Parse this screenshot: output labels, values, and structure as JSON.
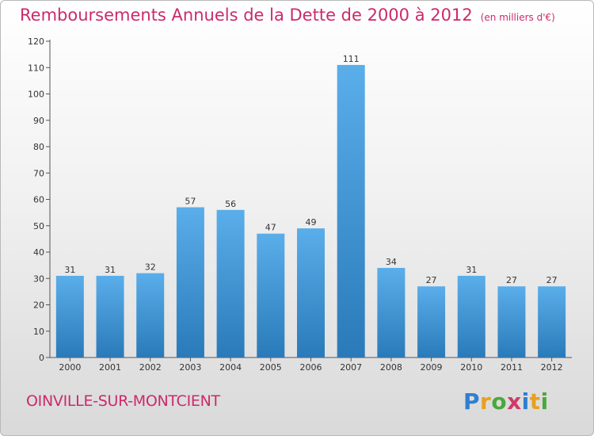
{
  "title": "Remboursements Annuels de la Dette de 2000 à 2012",
  "unit": "(en milliers d'€)",
  "commune": "OINVILLE-SUR-MONTCIENT",
  "logo": {
    "letters": [
      "P",
      "r",
      "o",
      "x",
      "i",
      "t",
      "i"
    ],
    "colors": [
      "#2f7fd0",
      "#e8a020",
      "#4aa83c",
      "#d03a6a",
      "#2f7fd0",
      "#e8a020",
      "#4aa83c"
    ]
  },
  "colors": {
    "bar_light": "#5aaeea",
    "bar_dark": "#2a7ab9",
    "title": "#cc2a6a"
  },
  "chart_data": {
    "type": "bar",
    "categories": [
      "2000",
      "2001",
      "2002",
      "2003",
      "2004",
      "2005",
      "2006",
      "2007",
      "2008",
      "2009",
      "2010",
      "2011",
      "2012"
    ],
    "values": [
      31,
      31,
      32,
      57,
      56,
      47,
      49,
      111,
      34,
      27,
      31,
      27,
      27
    ],
    "ylim": [
      0,
      120
    ],
    "yticks": [
      0,
      10,
      20,
      30,
      40,
      50,
      60,
      70,
      80,
      90,
      100,
      110,
      120
    ],
    "grid": false,
    "data_labels": true
  }
}
